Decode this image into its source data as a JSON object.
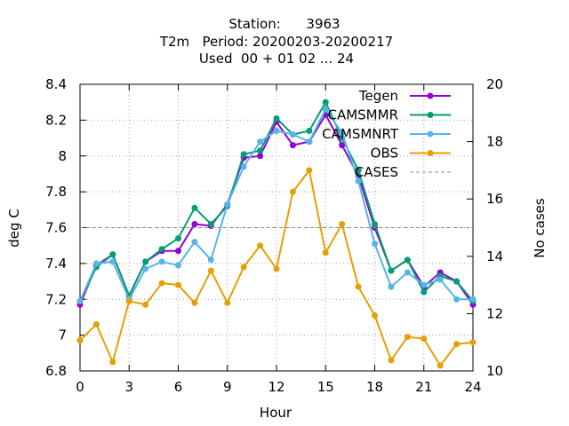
{
  "chart_data": {
    "type": "line",
    "title_lines": [
      "Station:      3963",
      "T2m   Period: 20200203-20200217",
      "Used  00 + 01 02 ... 24"
    ],
    "xlabel": "Hour",
    "ylabel": "deg C",
    "y2label": "No cases",
    "xlim": [
      0,
      24
    ],
    "ylim": [
      6.8,
      8.4
    ],
    "y2lim": [
      10,
      20
    ],
    "xticks": [
      0,
      3,
      6,
      9,
      12,
      15,
      18,
      21,
      24
    ],
    "yticks": [
      6.8,
      7,
      7.2,
      7.4,
      7.6,
      7.8,
      8,
      8.2,
      8.4
    ],
    "ytick_labels": [
      "6.8",
      "7",
      "7.2",
      "7.4",
      "7.6",
      "7.8",
      "8",
      "8.2",
      "8.4"
    ],
    "y2ticks": [
      10,
      12,
      14,
      16,
      18,
      20
    ],
    "grid": true,
    "legend_position": "top-right",
    "x": [
      0,
      1,
      2,
      3,
      4,
      5,
      6,
      7,
      8,
      9,
      10,
      11,
      12,
      13,
      14,
      15,
      16,
      17,
      18,
      19,
      20,
      21,
      22,
      23,
      24
    ],
    "series": [
      {
        "name": "Tegen",
        "color": "#9400d3",
        "marker": "filled-circle",
        "values": [
          7.17,
          7.39,
          7.45,
          7.22,
          7.41,
          7.47,
          7.47,
          7.62,
          7.61,
          7.73,
          7.99,
          8.0,
          8.19,
          8.06,
          8.08,
          8.23,
          8.06,
          7.89,
          7.6,
          7.36,
          7.42,
          7.27,
          7.35,
          7.3,
          7.17
        ]
      },
      {
        "name": "CAMSMMR",
        "color": "#009e73",
        "marker": "filled-circle",
        "values": [
          7.19,
          7.38,
          7.45,
          7.22,
          7.41,
          7.48,
          7.54,
          7.71,
          7.62,
          7.72,
          8.01,
          8.03,
          8.21,
          8.12,
          8.14,
          8.3,
          8.1,
          7.92,
          7.62,
          7.36,
          7.42,
          7.24,
          7.33,
          7.3,
          7.19
        ]
      },
      {
        "name": "CAMSMNRT",
        "color": "#56b4e9",
        "marker": "filled-circle",
        "values": [
          7.19,
          7.4,
          7.41,
          7.2,
          7.37,
          7.41,
          7.39,
          7.52,
          7.42,
          7.73,
          7.94,
          8.08,
          8.14,
          8.12,
          8.08,
          8.26,
          8.13,
          7.86,
          7.51,
          7.27,
          7.35,
          7.28,
          7.31,
          7.2,
          7.2
        ]
      },
      {
        "name": "OBS",
        "color": "#e69f00",
        "marker": "filled-circle",
        "values": [
          6.97,
          7.06,
          6.85,
          7.19,
          7.17,
          7.29,
          7.28,
          7.18,
          7.36,
          7.18,
          7.38,
          7.5,
          7.37,
          7.8,
          7.92,
          7.46,
          7.62,
          7.27,
          7.11,
          6.86,
          6.99,
          6.98,
          6.83,
          6.95,
          6.96
        ]
      },
      {
        "name": "CASES",
        "color": "#888888",
        "axis": "y2",
        "style": "dashed",
        "values": [
          15,
          15,
          15,
          15,
          15,
          15,
          15,
          15,
          15,
          15,
          15,
          15,
          15,
          15,
          15,
          15,
          15,
          15,
          15,
          15,
          15,
          15,
          15,
          15,
          15
        ]
      }
    ]
  }
}
